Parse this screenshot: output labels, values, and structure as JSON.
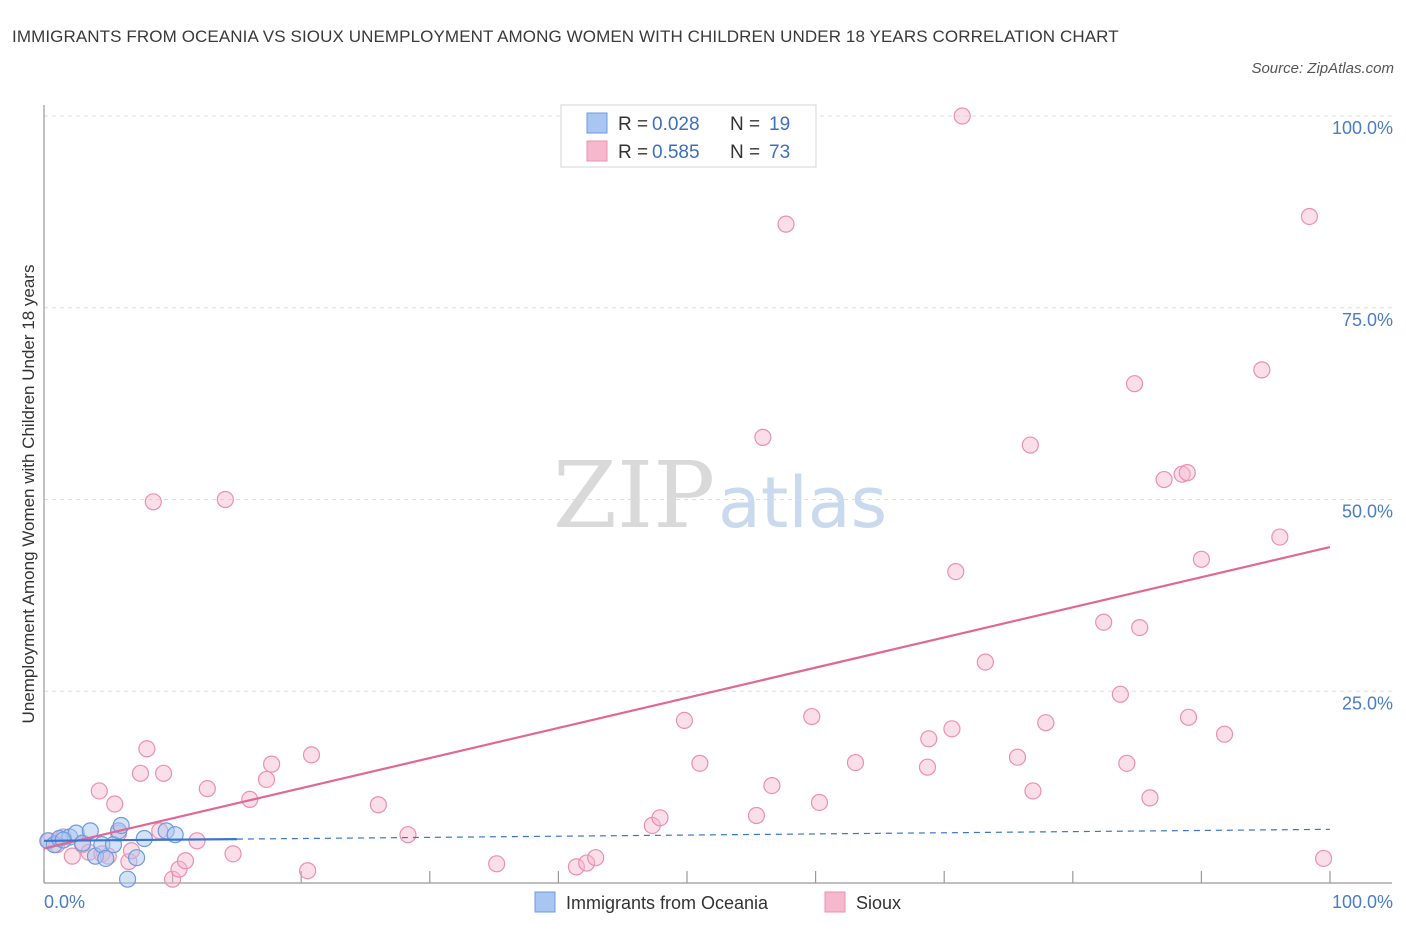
{
  "title": "IMMIGRANTS FROM OCEANIA VS SIOUX UNEMPLOYMENT AMONG WOMEN WITH CHILDREN UNDER 18 YEARS CORRELATION CHART",
  "source": "Source: ZipAtlas.com",
  "watermark": {
    "zip": "ZIP",
    "atlas": "atlas"
  },
  "colors": {
    "oceania_fill": "#a9c6f2",
    "oceania_stroke": "#6d9be0",
    "oceania_line": "#3a74cc",
    "sioux_fill": "#f6b8cc",
    "sioux_stroke": "#ec8fae",
    "sioux_line": "#e06894",
    "tick_label": "#4a7cc7",
    "grid": "#dddddd"
  },
  "legend": {
    "r_label": "R =",
    "n_label": "N =",
    "oceania": {
      "r": "0.028",
      "n": "19"
    },
    "sioux": {
      "r": "0.585",
      "n": "73"
    }
  },
  "bottom_legend": {
    "oceania": "Immigrants from Oceania",
    "sioux": "Sioux"
  },
  "chart_data": {
    "type": "scatter",
    "title": "IMMIGRANTS FROM OCEANIA VS SIOUX UNEMPLOYMENT AMONG WOMEN WITH CHILDREN UNDER 18 YEARS CORRELATION CHART",
    "xlabel": "",
    "ylabel": "Unemployment Among Women with Children Under 18 years",
    "xlim": [
      0,
      100
    ],
    "ylim": [
      0,
      100
    ],
    "x_tick_labels": [
      "0.0%",
      "100.0%"
    ],
    "y_ticks": [
      25,
      50,
      75,
      100
    ],
    "y_tick_labels": [
      "25.0%",
      "50.0%",
      "75.0%",
      "100.0%"
    ],
    "grid": true,
    "series": [
      {
        "name": "Immigrants from Oceania",
        "r": 0.028,
        "n": 19,
        "trend": {
          "x0": 0,
          "y0": 5.5,
          "x1": 100,
          "y1": 7.0,
          "solid_until_x": 15
        },
        "points": [
          [
            0.3,
            5.5
          ],
          [
            0.8,
            5.0
          ],
          [
            1.2,
            5.8
          ],
          [
            2.0,
            6.0
          ],
          [
            2.5,
            6.5
          ],
          [
            3.0,
            5.2
          ],
          [
            3.6,
            6.8
          ],
          [
            4.0,
            3.5
          ],
          [
            4.5,
            5.0
          ],
          [
            4.8,
            3.2
          ],
          [
            5.4,
            5.0
          ],
          [
            5.8,
            6.8
          ],
          [
            6.0,
            7.5
          ],
          [
            6.5,
            0.5
          ],
          [
            7.2,
            3.3
          ],
          [
            7.8,
            5.8
          ],
          [
            9.5,
            6.8
          ],
          [
            10.2,
            6.3
          ],
          [
            1.5,
            5.6
          ]
        ]
      },
      {
        "name": "Sioux",
        "r": 0.585,
        "n": 73,
        "trend": {
          "x0": 0,
          "y0": 4.5,
          "x1": 100,
          "y1": 43.8
        },
        "points": [
          [
            0.4,
            5.5
          ],
          [
            1.0,
            5.0
          ],
          [
            1.5,
            6.0
          ],
          [
            2.2,
            3.5
          ],
          [
            3.0,
            5.0
          ],
          [
            3.5,
            4.0
          ],
          [
            4.3,
            12.0
          ],
          [
            4.5,
            3.8
          ],
          [
            5.0,
            3.5
          ],
          [
            5.5,
            10.3
          ],
          [
            5.8,
            6.5
          ],
          [
            6.6,
            2.8
          ],
          [
            6.8,
            4.2
          ],
          [
            7.5,
            14.3
          ],
          [
            8.0,
            17.5
          ],
          [
            8.5,
            49.7
          ],
          [
            9.0,
            6.8
          ],
          [
            9.3,
            14.3
          ],
          [
            10.0,
            0.5
          ],
          [
            10.5,
            1.8
          ],
          [
            11.0,
            2.9
          ],
          [
            11.9,
            5.5
          ],
          [
            12.7,
            12.3
          ],
          [
            14.1,
            50.0
          ],
          [
            14.7,
            3.8
          ],
          [
            16.0,
            10.9
          ],
          [
            17.3,
            13.5
          ],
          [
            17.7,
            15.5
          ],
          [
            20.5,
            1.6
          ],
          [
            20.8,
            16.7
          ],
          [
            26.0,
            10.2
          ],
          [
            28.3,
            6.3
          ],
          [
            35.2,
            2.5
          ],
          [
            41.4,
            2.1
          ],
          [
            42.2,
            2.6
          ],
          [
            42.9,
            3.3
          ],
          [
            47.3,
            7.5
          ],
          [
            47.9,
            8.5
          ],
          [
            49.8,
            21.2
          ],
          [
            51.0,
            15.6
          ],
          [
            55.4,
            8.8
          ],
          [
            55.9,
            58.1
          ],
          [
            56.6,
            12.7
          ],
          [
            57.7,
            85.9
          ],
          [
            59.7,
            21.7
          ],
          [
            60.3,
            10.5
          ],
          [
            63.1,
            15.7
          ],
          [
            68.7,
            15.1
          ],
          [
            68.8,
            18.8
          ],
          [
            70.6,
            20.1
          ],
          [
            70.9,
            40.6
          ],
          [
            71.4,
            100.0
          ],
          [
            73.2,
            28.8
          ],
          [
            75.7,
            16.4
          ],
          [
            76.7,
            57.1
          ],
          [
            76.9,
            12.0
          ],
          [
            77.9,
            20.9
          ],
          [
            82.4,
            34.0
          ],
          [
            83.7,
            24.6
          ],
          [
            84.2,
            15.6
          ],
          [
            84.8,
            65.1
          ],
          [
            85.2,
            33.3
          ],
          [
            86.0,
            11.1
          ],
          [
            87.1,
            52.6
          ],
          [
            88.5,
            53.3
          ],
          [
            88.9,
            53.5
          ],
          [
            89.0,
            21.6
          ],
          [
            90.0,
            42.2
          ],
          [
            91.8,
            19.4
          ],
          [
            94.7,
            66.9
          ],
          [
            96.1,
            45.1
          ],
          [
            98.4,
            86.9
          ],
          [
            99.5,
            3.2
          ]
        ]
      }
    ]
  }
}
